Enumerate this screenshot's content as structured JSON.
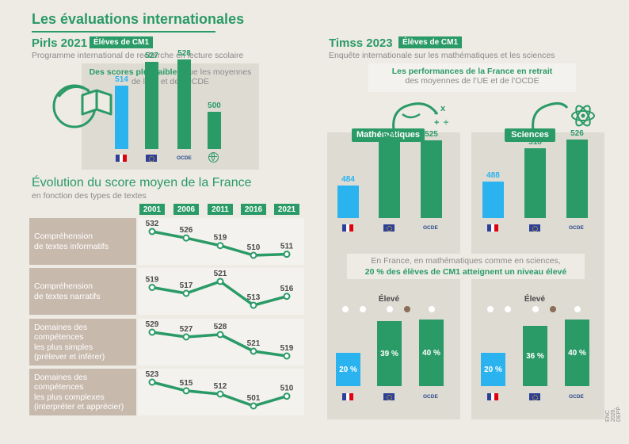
{
  "header": {
    "title": "Les évaluations internationales"
  },
  "pirls": {
    "title": "Pirls 2021",
    "tag": "Élèves de CM1",
    "subtitle": "Programme international de recherche en lecture scolaire",
    "box_bold": "Des scores plus faibles",
    "box_rest": " que les moyennes",
    "box_line2": "de l’UE et de l’OCDE"
  },
  "evolution": {
    "title": "Évolution du score moyen de la France",
    "subtitle": "en fonction des types de textes",
    "rows": [
      {
        "label_lines": [
          "Compréhension",
          "de textes informatifs"
        ]
      },
      {
        "label_lines": [
          "Compréhension",
          "de textes narratifs"
        ]
      },
      {
        "label_lines": [
          "Domaines des",
          "compétences",
          "les plus simples",
          "(prélever et inférer)"
        ]
      },
      {
        "label_lines": [
          "Domaines des",
          "compétences",
          "les plus complexes",
          "(interpréter et apprécier)"
        ]
      }
    ]
  },
  "timss": {
    "title": "Timss 2023",
    "tag": "Élèves de CM1",
    "subtitle": "Enquête internationale sur les mathématiques et les sciences",
    "box_bold": "Les performances de la France en retrait",
    "box_line2": "des moyennes de l’UE et de l’OCDE",
    "math_label": "Mathématiques",
    "sci_label": "Sciences",
    "note_line1": "En France, en mathématiques comme en sciences,",
    "note_line2": "20 % des élèves de CM1 atteignent un niveau élevé",
    "eleve_label": "Élevé"
  },
  "labels": {
    "ocde": "OCDE"
  },
  "credit": "ENC 2026, DEPP",
  "colors": {
    "green": "#2a9a66",
    "blue": "#2bb3ef",
    "beige": "#c8b9ad"
  },
  "chart_data": [
    {
      "type": "bar",
      "title": "Pirls 2021",
      "categories": [
        "France",
        "UE",
        "OCDE",
        "Moyenne internationale"
      ],
      "values": [
        514,
        527,
        528,
        500
      ]
    },
    {
      "type": "line",
      "title": "Évolution du score moyen de la France",
      "x": [
        "2001",
        "2006",
        "2011",
        "2016",
        "2021"
      ],
      "series": [
        {
          "name": "Compréhension de textes informatifs",
          "values": [
            532,
            526,
            519,
            510,
            511
          ]
        },
        {
          "name": "Compréhension de textes narratifs",
          "values": [
            519,
            517,
            521,
            513,
            516
          ]
        },
        {
          "name": "Domaines des compétences les plus simples (prélever et inférer)",
          "values": [
            529,
            527,
            528,
            521,
            519
          ]
        },
        {
          "name": "Domaines des compétences les plus complexes (interpréter et apprécier)",
          "values": [
            523,
            515,
            512,
            501,
            510
          ]
        }
      ]
    },
    {
      "type": "bar",
      "title": "Mathématiques",
      "categories": [
        "France",
        "UE",
        "OCDE"
      ],
      "values": [
        484,
        524,
        525
      ]
    },
    {
      "type": "bar",
      "title": "Sciences",
      "categories": [
        "France",
        "UE",
        "OCDE"
      ],
      "values": [
        488,
        518,
        526
      ]
    },
    {
      "type": "bar",
      "title": "Mathématiques — Élevé",
      "categories": [
        "France",
        "UE",
        "OCDE"
      ],
      "values": [
        20,
        39,
        40
      ],
      "value_labels": [
        "20 %",
        "39 %",
        "40 %"
      ]
    },
    {
      "type": "bar",
      "title": "Sciences — Élevé",
      "categories": [
        "France",
        "UE",
        "OCDE"
      ],
      "values": [
        20,
        36,
        40
      ],
      "value_labels": [
        "20 %",
        "36 %",
        "40 %"
      ]
    }
  ]
}
